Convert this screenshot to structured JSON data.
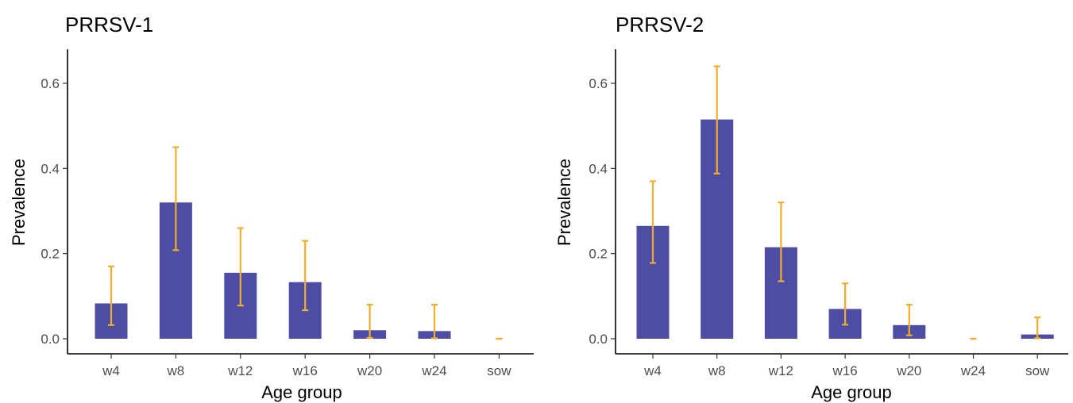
{
  "colors": {
    "bar": "#4d4da6",
    "error_bar": "#f0ad2a"
  },
  "chart_data": [
    {
      "type": "bar",
      "title": "PRRSV-1",
      "xlabel": "Age group",
      "ylabel": "Prevalence",
      "ylim": [
        0,
        0.68
      ],
      "yticks": [
        0.0,
        0.2,
        0.4,
        0.6
      ],
      "ytick_labels": [
        "0.0",
        "0.2",
        "0.4",
        "0.6"
      ],
      "grid": false,
      "categories": [
        "w4",
        "w8",
        "w12",
        "w16",
        "w20",
        "w24",
        "sow"
      ],
      "values": [
        0.083,
        0.32,
        0.155,
        0.133,
        0.02,
        0.018,
        0.0
      ],
      "lower": [
        0.032,
        0.208,
        0.078,
        0.067,
        0.002,
        0.001,
        0.0
      ],
      "upper": [
        0.17,
        0.45,
        0.26,
        0.23,
        0.08,
        0.08,
        0.0
      ]
    },
    {
      "type": "bar",
      "title": "PRRSV-2",
      "xlabel": "Age group",
      "ylabel": "Prevalence",
      "ylim": [
        0,
        0.68
      ],
      "yticks": [
        0.0,
        0.2,
        0.4,
        0.6
      ],
      "ytick_labels": [
        "0.0",
        "0.2",
        "0.4",
        "0.6"
      ],
      "grid": false,
      "categories": [
        "w4",
        "w8",
        "w12",
        "w16",
        "w20",
        "w24",
        "sow"
      ],
      "values": [
        0.265,
        0.515,
        0.215,
        0.07,
        0.032,
        0.0,
        0.01
      ],
      "lower": [
        0.178,
        0.388,
        0.135,
        0.033,
        0.008,
        0.0,
        0.001
      ],
      "upper": [
        0.37,
        0.64,
        0.32,
        0.13,
        0.08,
        0.0,
        0.05
      ]
    }
  ]
}
